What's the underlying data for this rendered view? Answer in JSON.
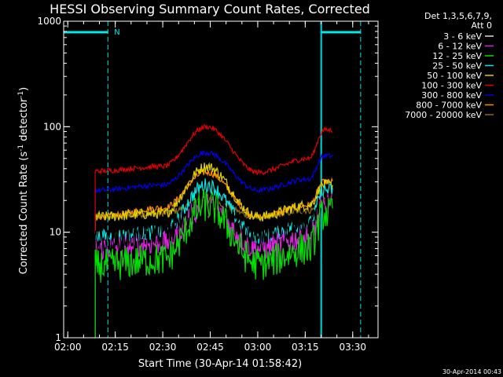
{
  "chart_data": {
    "type": "line",
    "title": "HESSI Observing Summary Count Rates, Corrected",
    "xlabel": "Start Time (30-Apr-14 01:58:42)",
    "ylabel_parts": [
      "Corrected Count Rate (s",
      "-1",
      " detector",
      "-1",
      ")"
    ],
    "yscale": "log",
    "ylim": [
      1,
      1000
    ],
    "xlim": [
      "01:58:42",
      "03:38:00"
    ],
    "x_ticks": [
      "02:00",
      "02:15",
      "02:30",
      "02:45",
      "03:00",
      "03:15",
      "03:30"
    ],
    "y_ticks": [
      "1",
      "10",
      "100",
      "1000"
    ],
    "grid": false,
    "legend_header": [
      "Det 1,3,5,6,7,9,",
      "Att 0"
    ],
    "legend_placement": "right",
    "timestamp": "30-Apr-2014 00:43",
    "annotations": {
      "night_marker": "N",
      "night_periods": [
        {
          "start": "01:58:42",
          "end": "02:12:40"
        },
        {
          "start": "03:20:10",
          "end": "03:32:30"
        }
      ],
      "night_boundary_lines": [
        "02:12:40",
        "03:20:10",
        "03:32:30"
      ]
    },
    "data_coverage": [
      "02:08:40",
      "03:23:40"
    ],
    "series": [
      {
        "name": "3 - 6 keV",
        "color": "#000000",
        "values": [
          [
            2.15,
            8
          ],
          [
            2.5,
            10
          ],
          [
            2.73,
            18
          ],
          [
            3.0,
            10
          ],
          [
            3.27,
            12
          ],
          [
            3.35,
            18
          ]
        ]
      },
      {
        "name": "6 - 12 keV",
        "color": "#e020e0",
        "values": [
          [
            2.15,
            7
          ],
          [
            2.5,
            8
          ],
          [
            2.73,
            18
          ],
          [
            3.0,
            7
          ],
          [
            3.27,
            9
          ],
          [
            3.35,
            18
          ]
        ]
      },
      {
        "name": "12 - 25 keV",
        "color": "#00e000",
        "values": [
          [
            2.15,
            4.8
          ],
          [
            2.5,
            5.5
          ],
          [
            2.73,
            18
          ],
          [
            3.0,
            5
          ],
          [
            3.27,
            7
          ],
          [
            3.35,
            15
          ]
        ]
      },
      {
        "name": "25 - 50 keV",
        "color": "#00e8e8",
        "values": [
          [
            2.15,
            9
          ],
          [
            2.5,
            10
          ],
          [
            2.73,
            28
          ],
          [
            3.0,
            9
          ],
          [
            3.27,
            12
          ],
          [
            3.35,
            25
          ]
        ]
      },
      {
        "name": "50 - 100 keV",
        "color": "#e0d000",
        "values": [
          [
            2.15,
            14
          ],
          [
            2.5,
            15
          ],
          [
            2.73,
            42
          ],
          [
            3.0,
            14
          ],
          [
            3.27,
            18
          ],
          [
            3.35,
            28
          ]
        ]
      },
      {
        "name": "100 - 300 keV",
        "color": "#e00000",
        "values": [
          [
            2.15,
            38
          ],
          [
            2.5,
            42
          ],
          [
            2.73,
            100
          ],
          [
            3.0,
            37
          ],
          [
            3.27,
            50
          ],
          [
            3.35,
            93
          ]
        ]
      },
      {
        "name": "300 - 800 keV",
        "color": "#0000e0",
        "values": [
          [
            2.15,
            25
          ],
          [
            2.5,
            28
          ],
          [
            2.73,
            57
          ],
          [
            3.0,
            25
          ],
          [
            3.27,
            32
          ],
          [
            3.35,
            53
          ]
        ]
      },
      {
        "name": "800 - 7000 keV",
        "color": "#ff8c00",
        "values": [
          [
            2.15,
            14
          ],
          [
            2.5,
            17
          ],
          [
            2.73,
            37
          ],
          [
            3.0,
            14
          ],
          [
            3.27,
            18
          ],
          [
            3.35,
            30
          ]
        ]
      },
      {
        "name": "7000 - 20000 keV",
        "color": "#8b6914",
        "values": [
          [
            2.15,
            14
          ],
          [
            2.5,
            15
          ],
          [
            2.73,
            20
          ],
          [
            3.0,
            14
          ],
          [
            3.27,
            16
          ],
          [
            3.35,
            20
          ]
        ]
      }
    ]
  }
}
